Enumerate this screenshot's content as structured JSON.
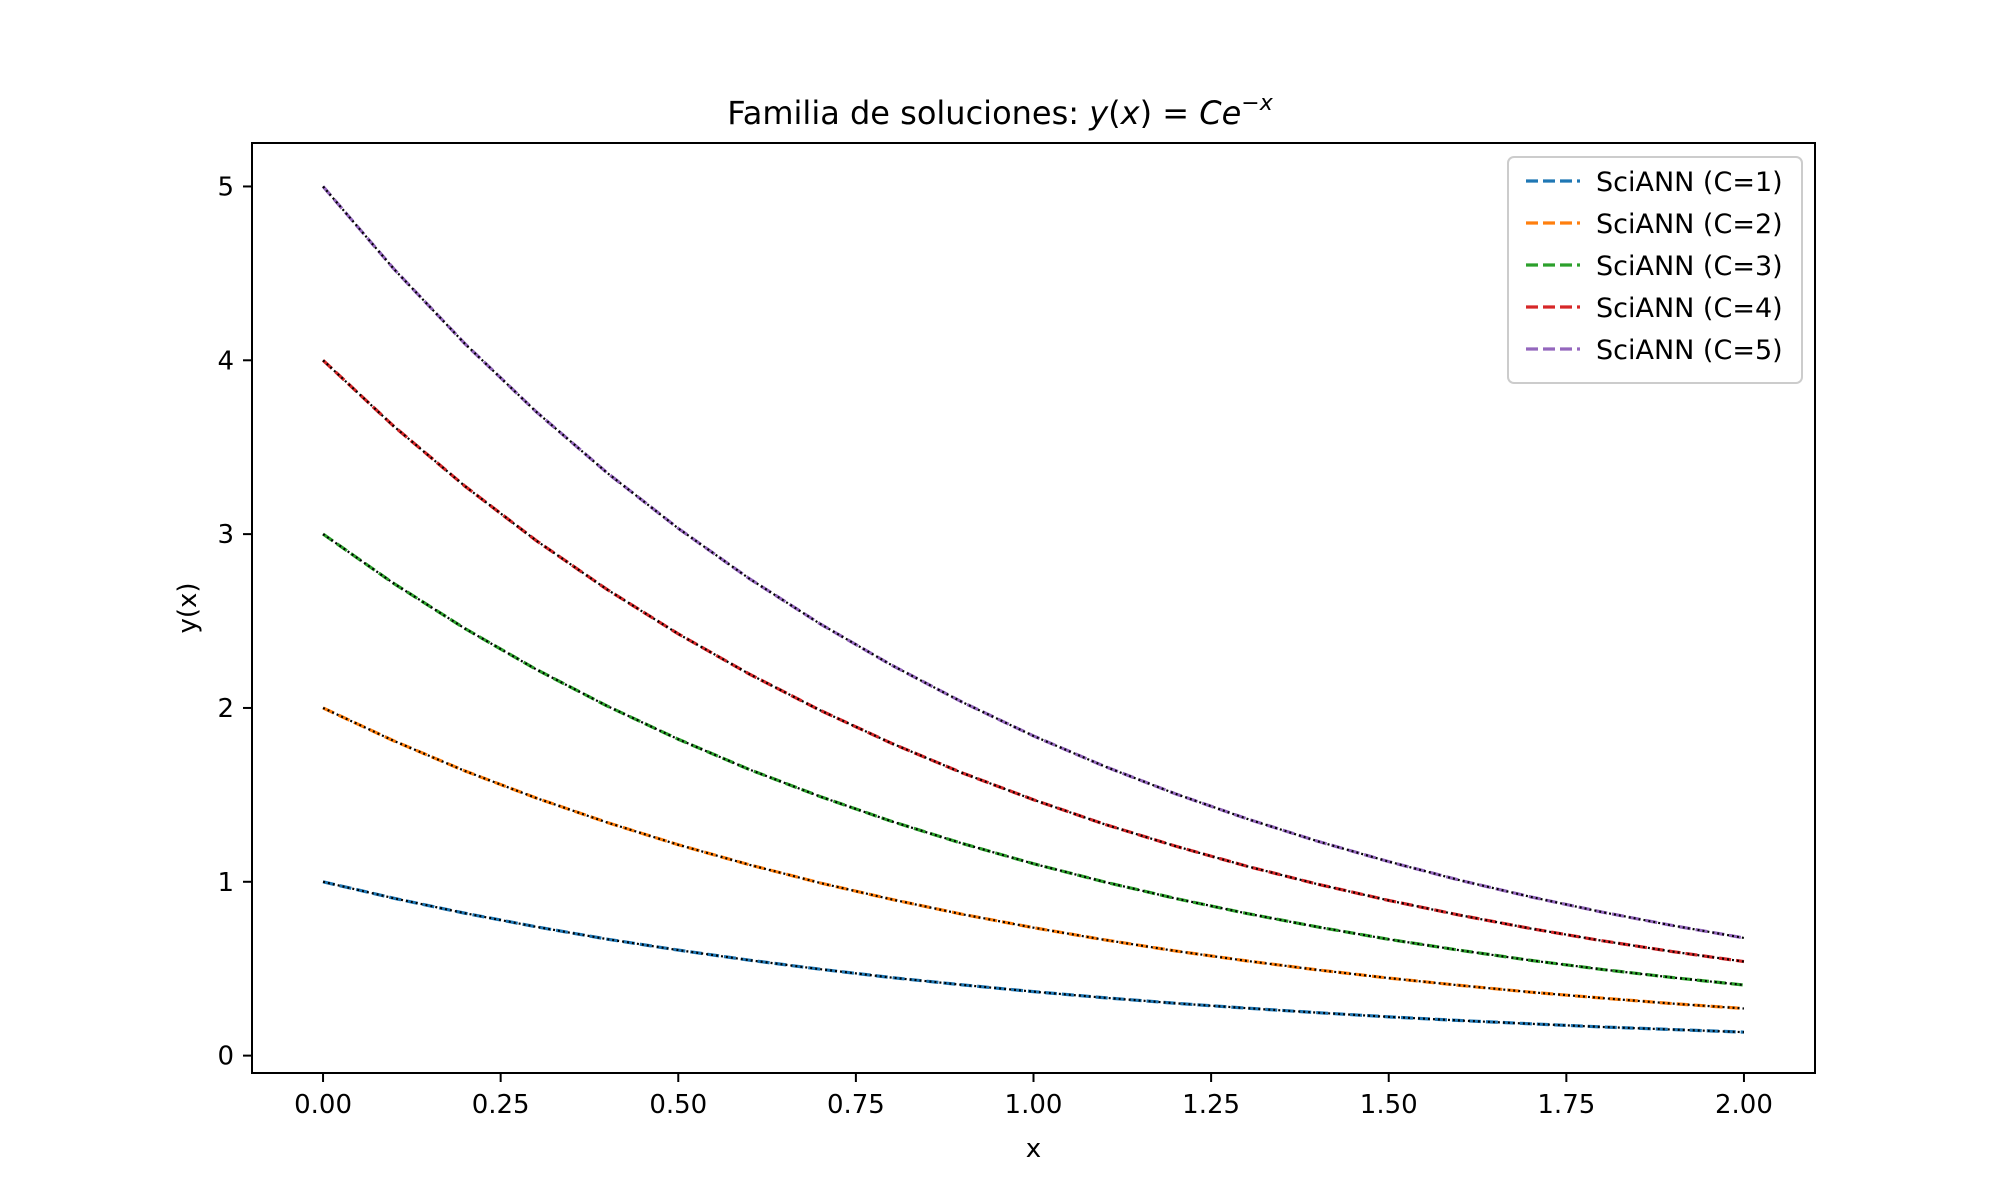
{
  "chart_data": {
    "type": "line",
    "title": "Familia de soluciones: y(x) = Ce⁻ˣ",
    "title_parts": {
      "prefix": "Familia de soluciones: ",
      "y": "y",
      "paren_open": "(",
      "x": "x",
      "paren_close": ")",
      "equals": " = ",
      "C": "C",
      "e": "e",
      "superscript": "−x"
    },
    "xlabel": "x",
    "ylabel": "y(x)",
    "xlim": [
      -0.1,
      2.1
    ],
    "ylim": [
      -0.1,
      5.25
    ],
    "x_ticks": [
      0.0,
      0.25,
      0.5,
      0.75,
      1.0,
      1.25,
      1.5,
      1.75,
      2.0
    ],
    "x_tick_labels": [
      "0.00",
      "0.25",
      "0.50",
      "0.75",
      "1.00",
      "1.25",
      "1.50",
      "1.75",
      "2.00"
    ],
    "y_ticks": [
      0,
      1,
      2,
      3,
      4,
      5
    ],
    "y_tick_labels": [
      "0",
      "1",
      "2",
      "3",
      "4",
      "5"
    ],
    "grid": false,
    "legend_position": "top-right",
    "x": [
      0.0,
      0.1,
      0.2,
      0.3,
      0.4,
      0.5,
      0.6,
      0.7,
      0.8,
      0.9,
      1.0,
      1.1,
      1.2,
      1.3,
      1.4,
      1.5,
      1.6,
      1.7,
      1.8,
      1.9,
      2.0
    ],
    "series": [
      {
        "name": "SciANN (C=1)",
        "color": "#1f77b4",
        "style": "dashed",
        "values": [
          1.0,
          0.905,
          0.819,
          0.741,
          0.67,
          0.607,
          0.549,
          0.497,
          0.449,
          0.407,
          0.368,
          0.333,
          0.301,
          0.273,
          0.247,
          0.223,
          0.202,
          0.183,
          0.165,
          0.15,
          0.135
        ]
      },
      {
        "name": "SciANN (C=2)",
        "color": "#ff7f0e",
        "style": "dashed",
        "values": [
          2.0,
          1.81,
          1.637,
          1.482,
          1.341,
          1.213,
          1.098,
          0.993,
          0.899,
          0.813,
          0.736,
          0.666,
          0.602,
          0.545,
          0.493,
          0.446,
          0.404,
          0.365,
          0.331,
          0.299,
          0.271
        ]
      },
      {
        "name": "SciANN (C=3)",
        "color": "#2ca02c",
        "style": "dashed",
        "values": [
          3.0,
          2.715,
          2.456,
          2.222,
          2.011,
          1.82,
          1.646,
          1.49,
          1.348,
          1.22,
          1.104,
          0.999,
          0.904,
          0.818,
          0.74,
          0.669,
          0.606,
          0.548,
          0.496,
          0.449,
          0.406
        ]
      },
      {
        "name": "SciANN (C=4)",
        "color": "#d62728",
        "style": "dashed",
        "values": [
          4.0,
          3.619,
          3.275,
          2.963,
          2.681,
          2.426,
          2.195,
          1.986,
          1.797,
          1.626,
          1.472,
          1.331,
          1.205,
          1.09,
          0.986,
          0.893,
          0.808,
          0.731,
          0.661,
          0.598,
          0.541
        ]
      },
      {
        "name": "SciANN (C=5)",
        "color": "#9467bd",
        "style": "dashed",
        "values": [
          5.0,
          4.524,
          4.094,
          3.704,
          3.352,
          3.033,
          2.744,
          2.483,
          2.247,
          2.033,
          1.839,
          1.664,
          1.506,
          1.363,
          1.233,
          1.116,
          1.009,
          0.913,
          0.826,
          0.748,
          0.677
        ]
      }
    ],
    "reference_color": "#000000",
    "reference_style": "dotted"
  }
}
